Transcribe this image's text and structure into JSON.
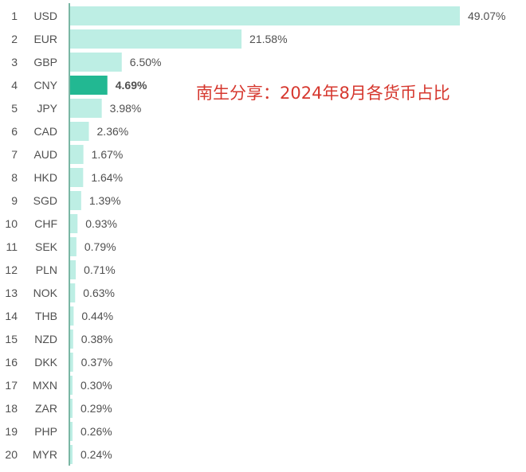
{
  "chart_data": {
    "type": "bar",
    "orientation": "horizontal",
    "title": "",
    "xlabel": "",
    "ylabel": "",
    "xlim": [
      0,
      50
    ],
    "grid": false,
    "annotation": "南生分享：2024年8月各货币占比",
    "highlight_category": "CNY",
    "colors": {
      "bar": "#bdeee4",
      "highlight": "#22b892",
      "axis": "#4f9d86",
      "text": "#505050",
      "annotation": "#d6382f"
    },
    "ranks": [
      "1",
      "2",
      "3",
      "4",
      "5",
      "6",
      "7",
      "8",
      "9",
      "10",
      "11",
      "12",
      "13",
      "14",
      "15",
      "16",
      "17",
      "18",
      "19",
      "20"
    ],
    "categories": [
      "USD",
      "EUR",
      "GBP",
      "CNY",
      "JPY",
      "CAD",
      "AUD",
      "HKD",
      "SGD",
      "CHF",
      "SEK",
      "PLN",
      "NOK",
      "THB",
      "NZD",
      "DKK",
      "MXN",
      "ZAR",
      "PHP",
      "MYR"
    ],
    "values": [
      49.07,
      21.58,
      6.5,
      4.69,
      3.98,
      2.36,
      1.67,
      1.64,
      1.39,
      0.93,
      0.79,
      0.71,
      0.63,
      0.44,
      0.38,
      0.37,
      0.3,
      0.29,
      0.26,
      0.24
    ],
    "value_labels": [
      "49.07%",
      "21.58%",
      "6.50%",
      "4.69%",
      "3.98%",
      "2.36%",
      "1.67%",
      "1.64%",
      "1.39%",
      "0.93%",
      "0.79%",
      "0.71%",
      "0.63%",
      "0.44%",
      "0.38%",
      "0.37%",
      "0.30%",
      "0.29%",
      "0.26%",
      "0.24%"
    ]
  }
}
